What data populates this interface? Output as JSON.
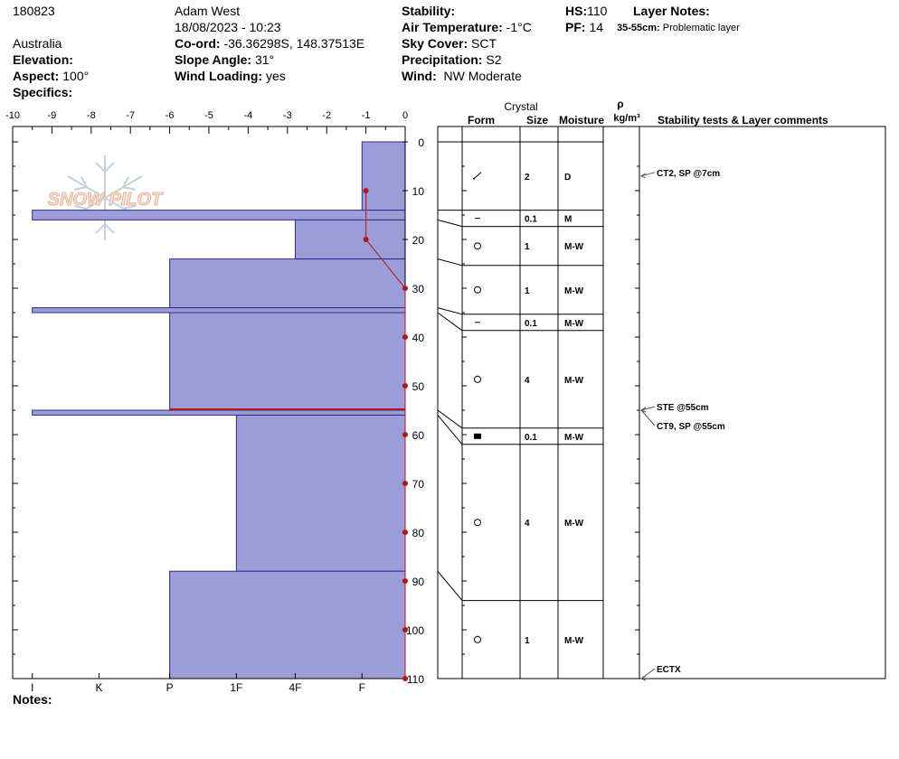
{
  "header": {
    "id": "180823",
    "observer": "Adam West",
    "datetime": "18/08/2023 - 10:23",
    "country": "Australia",
    "elevation_label": "Elevation:",
    "aspect_label": "Aspect:",
    "aspect_value": "100°",
    "specifics_label": "Specifics:",
    "coord_label": "Co-ord:",
    "coord_value": "-36.36298S, 148.37513E",
    "slope_label": "Slope Angle:",
    "slope_value": "31°",
    "wind_loading_label": "Wind Loading:",
    "wind_loading_value": "yes",
    "stability_label": "Stability:",
    "air_temp_label": "Air Temperature:",
    "air_temp_value": "-1°C",
    "sky_label": "Sky Cover:",
    "sky_value": "SCT",
    "precip_label": "Precipitation:",
    "precip_value": "S2",
    "wind_label": "Wind:",
    "wind_value": "NW Moderate",
    "hs_label": "HS:",
    "hs_value": "110",
    "pf_label": "PF:",
    "pf_value": "14",
    "layer_notes_label": "Layer Notes:",
    "layer_note_range": "35-55cm:",
    "layer_note_text": "Problematic layer",
    "notes_label": "Notes:"
  },
  "logo": {
    "text": "SNOW PILOT"
  },
  "table_headers": {
    "crystal": "Crystal",
    "form": "Form",
    "size": "Size",
    "moisture": "Moisture",
    "rho": "ρ",
    "density_unit": "kg/m³",
    "stability": "Stability tests & Layer comments"
  },
  "colors": {
    "hardness_fill": "#9c9cd8",
    "hardness_stroke": "#2b2b8a",
    "temperature": "#b01818",
    "failure_line": "#b01818"
  },
  "chart_data": {
    "type": "snow-profile",
    "depth_axis": {
      "range": [
        0,
        110
      ],
      "ticks": [
        0,
        10,
        20,
        30,
        40,
        50,
        60,
        70,
        80,
        90,
        100,
        110
      ]
    },
    "temperature_axis": {
      "range": [
        -10,
        0
      ],
      "ticks": [
        "-10",
        "-9",
        "-8",
        "-7",
        "-6",
        "-5",
        "-4",
        "-3",
        "-2",
        "-1",
        "0"
      ]
    },
    "hardness_axis": {
      "labels": [
        "I",
        "K",
        "P",
        "1F",
        "4F",
        "F"
      ],
      "positions": [
        -9.5,
        -7.8,
        -6,
        -4.3,
        -2.8,
        -1.1
      ]
    },
    "layers": [
      {
        "top": 0,
        "bottom": 14,
        "hardness": -1.1,
        "form": "decomposing",
        "size": "2",
        "moisture": "D"
      },
      {
        "top": 14,
        "bottom": 16,
        "hardness": -9.5,
        "form": "surface-hoar",
        "size": "0.1",
        "moisture": "M"
      },
      {
        "top": 16,
        "bottom": 24,
        "hardness": -2.8,
        "form": "rounded",
        "size": "1",
        "moisture": "M-W"
      },
      {
        "top": 24,
        "bottom": 34,
        "hardness": -6,
        "form": "rounded",
        "size": "1",
        "moisture": "M-W"
      },
      {
        "top": 34,
        "bottom": 35,
        "hardness": -9.5,
        "form": "surface-hoar",
        "size": "0.1",
        "moisture": "M-W"
      },
      {
        "top": 35,
        "bottom": 55,
        "hardness": -6,
        "form": "rounded",
        "size": "4",
        "moisture": "M-W"
      },
      {
        "top": 55,
        "bottom": 56,
        "hardness": -9.5,
        "form": "ice",
        "size": "0.1",
        "moisture": "M-W"
      },
      {
        "top": 56,
        "bottom": 88,
        "hardness": -4.3,
        "form": "rounded",
        "size": "4",
        "moisture": "M-W"
      },
      {
        "top": 88,
        "bottom": 110,
        "hardness": -6,
        "form": "rounded",
        "size": "1",
        "moisture": "M-W"
      }
    ],
    "temperature_profile": [
      {
        "depth": 10,
        "temp": -1
      },
      {
        "depth": 20,
        "temp": -1
      },
      {
        "depth": 30,
        "temp": 0
      },
      {
        "depth": 40,
        "temp": 0
      },
      {
        "depth": 50,
        "temp": 0
      },
      {
        "depth": 60,
        "temp": 0
      },
      {
        "depth": 70,
        "temp": 0
      },
      {
        "depth": 80,
        "temp": 0
      },
      {
        "depth": 90,
        "temp": 0
      },
      {
        "depth": 100,
        "temp": 0
      },
      {
        "depth": 110,
        "temp": 0
      }
    ],
    "failure_depth": 55,
    "tests": [
      {
        "depth": 7,
        "label": "CT2, SP @7cm"
      },
      {
        "depth": 55,
        "label": "STE @55cm"
      },
      {
        "depth": 55,
        "label": "CT9, SP @55cm"
      },
      {
        "depth": 110,
        "label": "ECTX"
      }
    ]
  }
}
